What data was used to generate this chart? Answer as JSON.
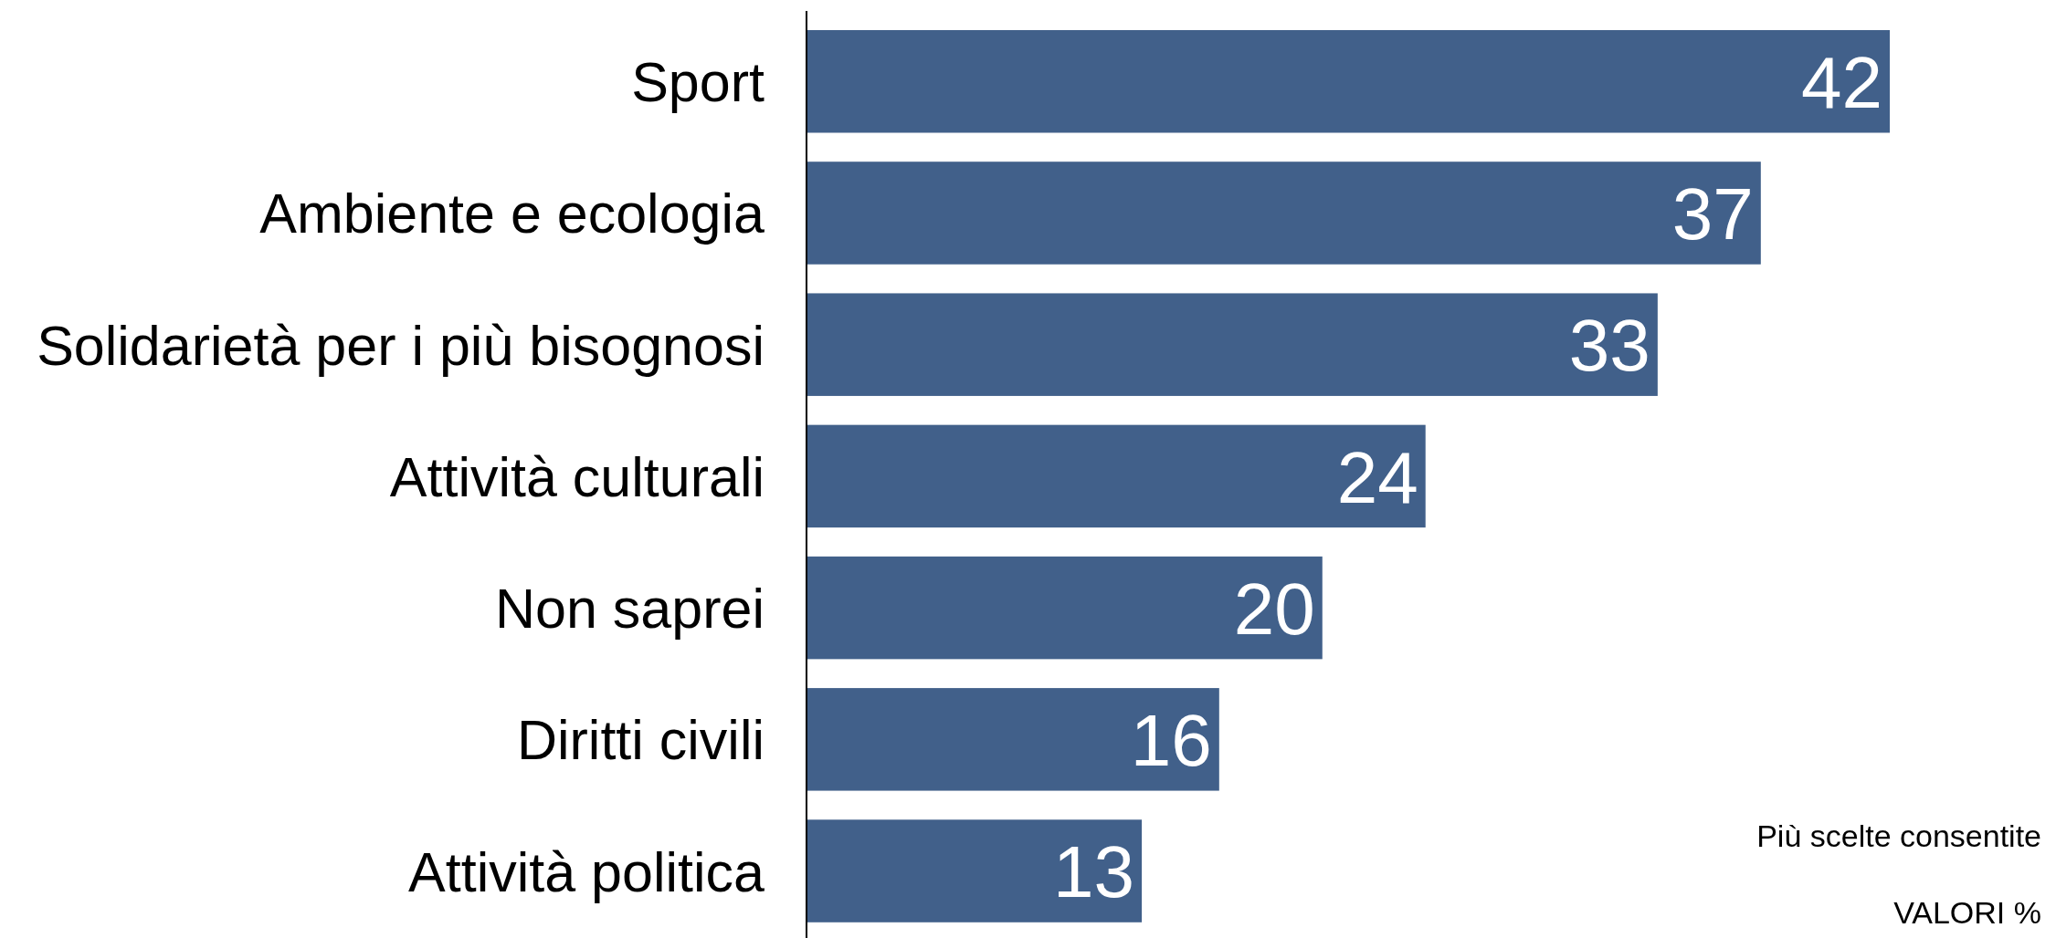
{
  "chart_data": {
    "type": "bar",
    "orientation": "horizontal",
    "categories": [
      "Sport",
      "Ambiente e ecologia",
      "Solidarietà per i più bisognosi",
      "Attività culturali",
      "Non saprei",
      "Diritti civili",
      "Attività politica"
    ],
    "values": [
      42,
      37,
      33,
      24,
      20,
      16,
      13
    ],
    "color": "#41608a",
    "data_labels": true,
    "annotations": [
      "Più scelte consentite",
      "VALORI %"
    ]
  }
}
